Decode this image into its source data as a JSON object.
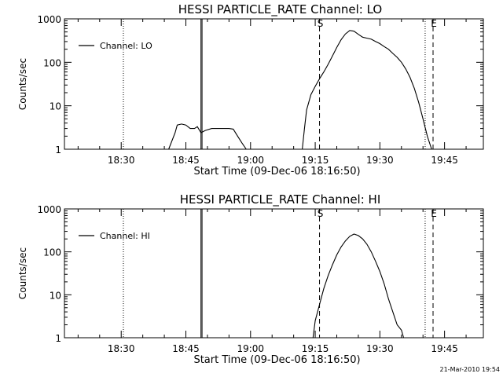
{
  "chart_data": [
    {
      "type": "line",
      "title": "HESSI PARTICLE_RATE Channel: LO",
      "xlabel": "Start Time (09-Dec-06 18:16:50)",
      "ylabel": "Counts/sec",
      "y_scale": "log",
      "xlim": [
        "18:16:50",
        "19:54:00"
      ],
      "ylim": [
        1,
        1000
      ],
      "x_ticks": [
        "18:30",
        "18:45",
        "19:00",
        "19:15",
        "19:30",
        "19:45"
      ],
      "y_ticks": [
        "1",
        "10",
        "100",
        "1000"
      ],
      "grid": false,
      "legend": {
        "position": "top-left",
        "entries": [
          "Channel: LO"
        ]
      },
      "series": [
        {
          "name": "Channel: LO",
          "segments": [
            [
              [
                "18:41:00",
                1.0
              ],
              [
                "18:42:30",
                2.4
              ],
              [
                "18:43:00",
                3.6
              ],
              [
                "18:44:00",
                3.8
              ],
              [
                "18:45:00",
                3.6
              ],
              [
                "18:46:00",
                3.0
              ],
              [
                "18:47:00",
                3.0
              ],
              [
                "18:47:40",
                3.3
              ],
              [
                "18:48:30",
                2.4
              ],
              [
                "18:49:30",
                2.7
              ],
              [
                "18:51:00",
                3.0
              ],
              [
                "18:53:00",
                3.0
              ],
              [
                "18:55:00",
                3.0
              ],
              [
                "18:56:00",
                2.9
              ],
              [
                "18:57:00",
                2.0
              ],
              [
                "18:58:00",
                1.4
              ],
              [
                "18:59:00",
                1.0
              ]
            ],
            [
              [
                "19:12:00",
                1.0
              ],
              [
                "19:12:30",
                3.0
              ],
              [
                "19:13:00",
                8.0
              ],
              [
                "19:14:00",
                18.0
              ],
              [
                "19:15:00",
                28.0
              ],
              [
                "19:16:00",
                42.0
              ],
              [
                "19:17:00",
                60.0
              ],
              [
                "19:18:00",
                90.0
              ],
              [
                "19:19:00",
                140.0
              ],
              [
                "19:20:00",
                220.0
              ],
              [
                "19:21:00",
                330.0
              ],
              [
                "19:22:00",
                450.0
              ],
              [
                "19:23:00",
                540.0
              ],
              [
                "19:24:00",
                520.0
              ],
              [
                "19:25:00",
                440.0
              ],
              [
                "19:26:00",
                380.0
              ],
              [
                "19:27:00",
                360.0
              ],
              [
                "19:28:00",
                340.0
              ],
              [
                "19:29:00",
                300.0
              ],
              [
                "19:30:00",
                270.0
              ],
              [
                "19:31:00",
                230.0
              ],
              [
                "19:32:00",
                200.0
              ],
              [
                "19:33:00",
                160.0
              ],
              [
                "19:34:00",
                130.0
              ],
              [
                "19:35:00",
                100.0
              ],
              [
                "19:36:00",
                70.0
              ],
              [
                "19:37:00",
                45.0
              ],
              [
                "19:38:00",
                25.0
              ],
              [
                "19:39:00",
                12.0
              ],
              [
                "19:40:00",
                5.0
              ],
              [
                "19:41:00",
                2.0
              ],
              [
                "19:42:00",
                1.0
              ]
            ]
          ]
        }
      ],
      "markers": [
        {
          "label": "",
          "style": "dotted",
          "x": "18:30:30"
        },
        {
          "label": "",
          "style": "solid",
          "x": "18:48:30"
        },
        {
          "label": "",
          "style": "solid",
          "x": "18:48:45"
        },
        {
          "label": "S",
          "style": "dashed",
          "x": "19:16:00"
        },
        {
          "label": "",
          "style": "dotted",
          "x": "19:40:30"
        },
        {
          "label": "E",
          "style": "dashed",
          "x": "19:42:20"
        },
        {
          "label": "",
          "style": "dotted",
          "x": "19:54:00"
        }
      ]
    },
    {
      "type": "line",
      "title": "HESSI PARTICLE_RATE Channel: HI",
      "xlabel": "Start Time (09-Dec-06 18:16:50)",
      "ylabel": "Counts/sec",
      "y_scale": "log",
      "xlim": [
        "18:16:50",
        "19:54:00"
      ],
      "ylim": [
        1,
        1000
      ],
      "x_ticks": [
        "18:30",
        "18:45",
        "19:00",
        "19:15",
        "19:30",
        "19:45"
      ],
      "y_ticks": [
        "1",
        "10",
        "100",
        "1000"
      ],
      "grid": false,
      "legend": {
        "position": "top-left",
        "entries": [
          "Channel: HI"
        ]
      },
      "series": [
        {
          "name": "Channel: HI",
          "segments": [
            [
              [
                "19:14:30",
                1.0
              ],
              [
                "19:15:00",
                2.5
              ],
              [
                "19:16:00",
                6.0
              ],
              [
                "19:17:00",
                14.0
              ],
              [
                "19:18:00",
                28.0
              ],
              [
                "19:19:00",
                50.0
              ],
              [
                "19:20:00",
                85.0
              ],
              [
                "19:21:00",
                130.0
              ],
              [
                "19:22:00",
                180.0
              ],
              [
                "19:23:00",
                230.0
              ],
              [
                "19:24:00",
                260.0
              ],
              [
                "19:25:00",
                240.0
              ],
              [
                "19:26:00",
                200.0
              ],
              [
                "19:27:00",
                150.0
              ],
              [
                "19:28:00",
                100.0
              ],
              [
                "19:29:00",
                60.0
              ],
              [
                "19:30:00",
                35.0
              ],
              [
                "19:31:00",
                18.0
              ],
              [
                "19:32:00",
                8.0
              ],
              [
                "19:33:00",
                4.0
              ],
              [
                "19:34:00",
                2.0
              ],
              [
                "19:35:00",
                1.5
              ],
              [
                "19:35:30",
                1.0
              ]
            ]
          ]
        }
      ],
      "markers": [
        {
          "label": "",
          "style": "dotted",
          "x": "18:30:30"
        },
        {
          "label": "",
          "style": "solid",
          "x": "18:48:30"
        },
        {
          "label": "",
          "style": "solid",
          "x": "18:48:45"
        },
        {
          "label": "S",
          "style": "dashed",
          "x": "19:16:00"
        },
        {
          "label": "",
          "style": "dotted",
          "x": "19:40:30"
        },
        {
          "label": "E",
          "style": "dashed",
          "x": "19:42:20"
        },
        {
          "label": "",
          "style": "dotted",
          "x": "19:54:00"
        }
      ]
    }
  ],
  "footer": {
    "timestamp": "21-Mar-2010 19:54"
  }
}
